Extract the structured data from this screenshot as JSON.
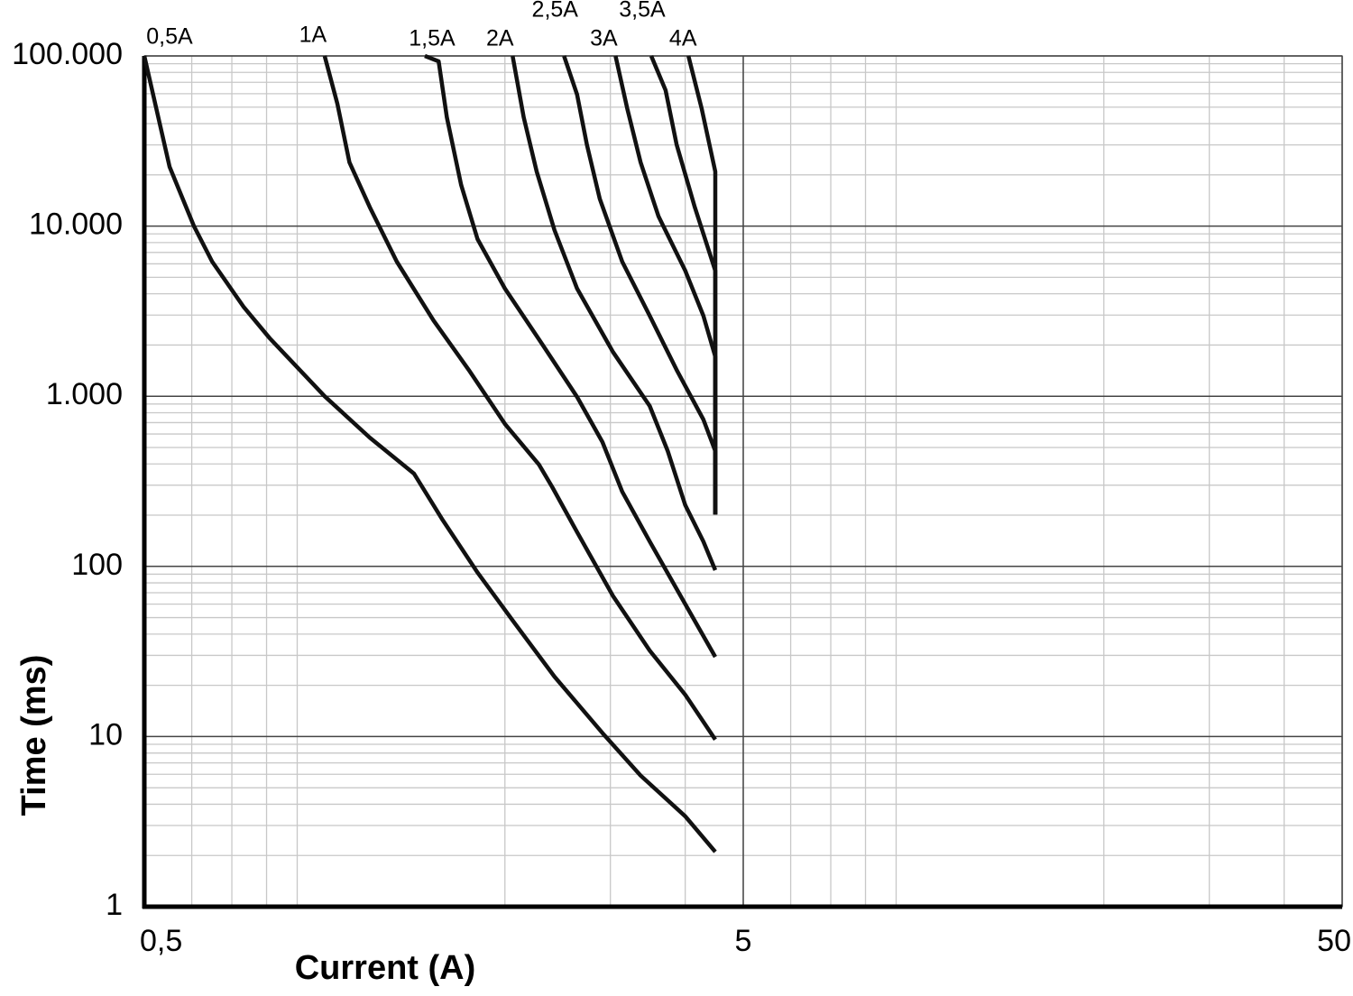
{
  "chart_data": {
    "type": "line",
    "x_label": "Current (A)",
    "y_label": "Time (ms)",
    "xscale": "log",
    "yscale": "log",
    "xlim": [
      0.5,
      50
    ],
    "ylim": [
      1,
      100000
    ],
    "xticks": [
      {
        "value": 0.5,
        "label": "0,5"
      },
      5,
      50
    ],
    "yticks": [
      1,
      10,
      100,
      {
        "value": 1000,
        "label": "1.000"
      },
      {
        "value": 10000,
        "label": "10.000"
      },
      {
        "value": 100000,
        "label": "100.000"
      }
    ],
    "grid": true,
    "series": [
      {
        "name": "0,5A",
        "color": "#111111",
        "x": [
          0.5,
          0.551,
          0.605,
          0.649,
          0.732,
          0.81,
          1.0,
          1.19,
          1.41,
          1.57,
          1.8,
          2.07,
          2.42,
          2.93,
          3.37,
          4.0,
          4.49
        ],
        "values": [
          100000,
          22300,
          10000,
          6180,
          3360,
          2190,
          1000,
          571,
          351,
          190,
          92,
          47,
          22.5,
          10.2,
          5.9,
          3.4,
          2.1
        ]
      },
      {
        "name": "1A",
        "color": "#111111",
        "x": [
          1.0,
          1.05,
          1.1,
          1.19,
          1.32,
          1.52,
          1.74,
          2.0,
          2.28,
          2.4,
          2.64,
          3.03,
          3.49,
          4.0,
          4.49
        ],
        "values": [
          100000,
          52400,
          23700,
          12900,
          6180,
          2790,
          1430,
          687,
          396,
          292,
          159,
          67,
          32,
          17.6,
          9.6
        ]
      },
      {
        "name": "1,5A",
        "color": "#111111",
        "x": [
          1.47,
          1.55,
          1.6,
          1.69,
          1.8,
          2.0,
          2.3,
          2.64,
          2.91,
          3.14,
          3.49,
          4.0,
          4.49
        ],
        "values": [
          100000,
          92900,
          43600,
          17500,
          8390,
          4290,
          2060,
          990,
          538,
          275,
          140,
          60,
          29.4
        ]
      },
      {
        "name": "2A",
        "color": "#111111",
        "x": [
          2.06,
          2.15,
          2.26,
          2.42,
          2.64,
          3.03,
          3.49,
          3.74,
          4.0,
          4.29,
          4.49
        ],
        "values": [
          100000,
          43600,
          20900,
          9480,
          4290,
          1820,
          877,
          476,
          229,
          140,
          95
        ]
      },
      {
        "name": "2,5A",
        "color": "#111111",
        "x": [
          2.51,
          2.64,
          2.74,
          2.88,
          3.14,
          3.49,
          3.87,
          4.29,
          4.49,
          4.49
        ],
        "values": [
          100000,
          59200,
          30200,
          14500,
          6180,
          2970,
          1430,
          730,
          476,
          202
        ]
      },
      {
        "name": "3A",
        "color": "#111111",
        "x": [
          3.06,
          3.2,
          3.37,
          3.61,
          4.0,
          4.29,
          4.49,
          4.49
        ],
        "values": [
          100000,
          49300,
          23700,
          11400,
          5470,
          2970,
          1710,
          202
        ]
      },
      {
        "name": "3,5A",
        "color": "#111111",
        "x": [
          3.51,
          3.71,
          3.87,
          4.15,
          4.49,
          4.49
        ],
        "values": [
          100000,
          62900,
          30200,
          12900,
          5470,
          202
        ]
      },
      {
        "name": "4A",
        "color": "#111111",
        "x": [
          4.05,
          4.26,
          4.49,
          4.49
        ],
        "values": [
          100000,
          49300,
          20900,
          202
        ]
      }
    ]
  }
}
